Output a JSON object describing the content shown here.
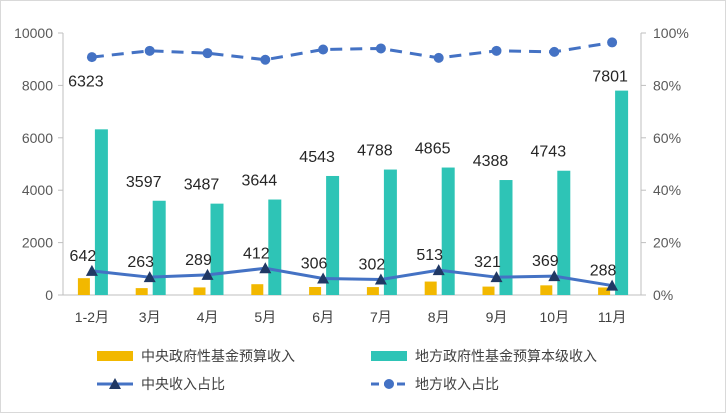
{
  "chart_data": {
    "type": "bar+line",
    "categories": [
      "1-2月",
      "3月",
      "4月",
      "5月",
      "6月",
      "7月",
      "8月",
      "9月",
      "10月",
      "11月"
    ],
    "series": [
      {
        "name": "中央政府性基金预算收入",
        "type": "bar",
        "axis": "left",
        "color": "#f2b800",
        "values": [
          642,
          263,
          289,
          412,
          306,
          302,
          513,
          321,
          369,
          288
        ]
      },
      {
        "name": "地方政府性基金预算本级收入",
        "type": "bar",
        "axis": "left",
        "color": "#2ec4b6",
        "values": [
          6323,
          3597,
          3487,
          3644,
          4543,
          4788,
          4865,
          4388,
          4743,
          7801
        ]
      },
      {
        "name": "中央收入占比",
        "type": "line",
        "axis": "right",
        "color": "#4472c4",
        "marker": "triangle",
        "values": [
          9.2,
          6.8,
          7.7,
          10.2,
          6.3,
          5.9,
          9.5,
          6.8,
          7.2,
          3.6
        ]
      },
      {
        "name": "地方收入占比",
        "type": "line",
        "axis": "right",
        "color": "#4472c4",
        "dashed": true,
        "marker": "circle",
        "values": [
          90.8,
          93.2,
          92.3,
          89.8,
          93.7,
          94.1,
          90.5,
          93.2,
          92.8,
          96.4
        ]
      }
    ],
    "left_axis": {
      "ylim": [
        0,
        10000
      ],
      "ticks": [
        "0",
        "2000",
        "4000",
        "6000",
        "8000",
        "10000"
      ]
    },
    "right_axis": {
      "ylim": [
        0,
        100
      ],
      "ticks": [
        "0%",
        "20%",
        "40%",
        "60%",
        "80%",
        "100%"
      ]
    },
    "legend_position": "bottom",
    "grid": false
  }
}
